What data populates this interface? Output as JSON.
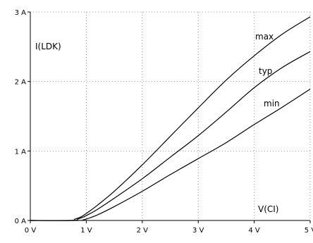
{
  "chart_data": {
    "type": "line",
    "title": "",
    "xlabel": "",
    "ylabel": "",
    "xlim": [
      0,
      5
    ],
    "ylim": [
      0,
      3
    ],
    "x_ticks": [
      {
        "value": 0,
        "label": "0 V"
      },
      {
        "value": 1,
        "label": "1 V"
      },
      {
        "value": 2,
        "label": "2 V"
      },
      {
        "value": 3,
        "label": "3 V"
      },
      {
        "value": 4,
        "label": "4 V"
      },
      {
        "value": 5,
        "label": "5 V"
      }
    ],
    "y_ticks": [
      {
        "value": 0,
        "label": "0 A"
      },
      {
        "value": 1,
        "label": "1 A"
      },
      {
        "value": 2,
        "label": "2 A"
      },
      {
        "value": 3,
        "label": "3 A"
      }
    ],
    "grid": true,
    "annotations": {
      "y_quantity": "I(LDK)",
      "x_quantity": "V(CI)"
    },
    "series": [
      {
        "name": "max",
        "x": [
          0,
          0.7,
          0.8,
          0.9,
          1.0,
          1.2,
          1.5,
          2.0,
          2.5,
          3.0,
          3.5,
          4.0,
          4.5,
          5.0
        ],
        "y": [
          0,
          0,
          0.02,
          0.05,
          0.1,
          0.22,
          0.42,
          0.8,
          1.21,
          1.62,
          2.02,
          2.37,
          2.68,
          2.93
        ]
      },
      {
        "name": "typ",
        "x": [
          0,
          0.75,
          0.85,
          0.95,
          1.0,
          1.2,
          1.5,
          2.0,
          2.5,
          3.0,
          3.5,
          4.0,
          4.5,
          5.0
        ],
        "y": [
          0,
          0,
          0.02,
          0.05,
          0.07,
          0.16,
          0.32,
          0.6,
          0.91,
          1.22,
          1.56,
          1.91,
          2.2,
          2.43
        ]
      },
      {
        "name": "min",
        "x": [
          0,
          0.85,
          0.95,
          1.0,
          1.2,
          1.5,
          2.0,
          2.5,
          3.0,
          3.5,
          4.0,
          4.5,
          5.0
        ],
        "y": [
          0,
          0,
          0.01,
          0.02,
          0.08,
          0.2,
          0.42,
          0.66,
          0.89,
          1.12,
          1.38,
          1.63,
          1.89
        ]
      }
    ]
  }
}
